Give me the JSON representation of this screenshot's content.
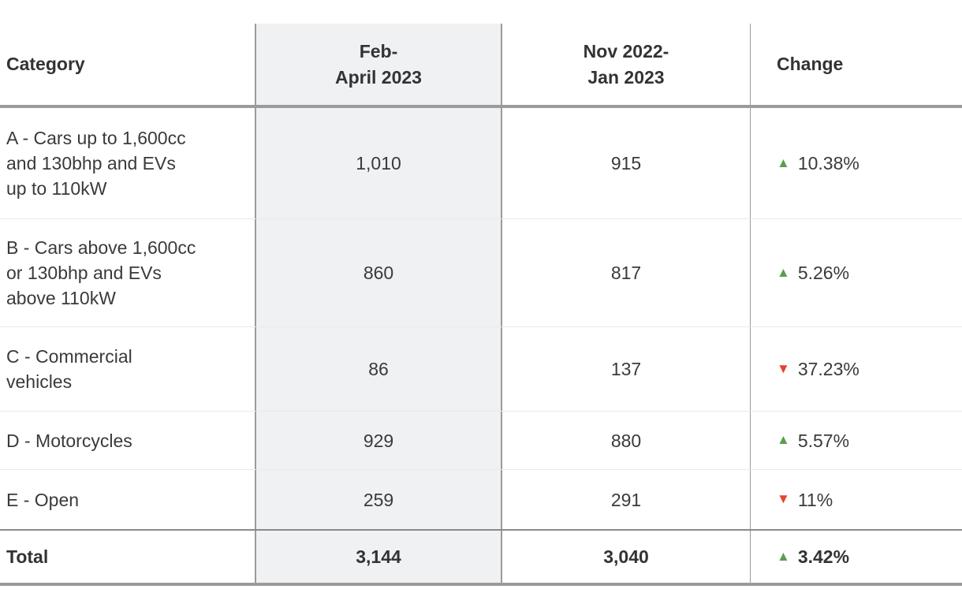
{
  "table": {
    "header": {
      "category": "Category",
      "col_current": "Feb-\nApril 2023",
      "col_previous": "Nov 2022-\nJan 2023",
      "col_change": "Change"
    },
    "rows": [
      {
        "category": "A - Cars up to 1,600cc\nand 130bhp and EVs\nup to 110kW",
        "current": "1,010",
        "previous": "915",
        "change": "10.38%",
        "direction": "up",
        "arrow": "▲"
      },
      {
        "category": "B - Cars above 1,600cc\nor 130bhp and EVs\nabove 110kW",
        "current": "860",
        "previous": "817",
        "change": "5.26%",
        "direction": "up",
        "arrow": "▲"
      },
      {
        "category": "C - Commercial\nvehicles",
        "current": "86",
        "previous": "137",
        "change": "37.23%",
        "direction": "down",
        "arrow": "▼"
      },
      {
        "category": "D - Motorcycles",
        "current": "929",
        "previous": "880",
        "change": "5.57%",
        "direction": "up",
        "arrow": "▲"
      },
      {
        "category": "E - Open",
        "current": "259",
        "previous": "291",
        "change": "11%",
        "direction": "down",
        "arrow": "▼"
      }
    ],
    "total": {
      "label": "Total",
      "current": "3,144",
      "previous": "3,040",
      "change": "3.42%",
      "direction": "up",
      "arrow": "▲"
    }
  },
  "colors": {
    "up_green": "#5a9e4e",
    "down_red": "#e8432b",
    "column_shade": "#eff1f2",
    "border_gray": "#9b9b9b",
    "text_dark": "#333333"
  }
}
